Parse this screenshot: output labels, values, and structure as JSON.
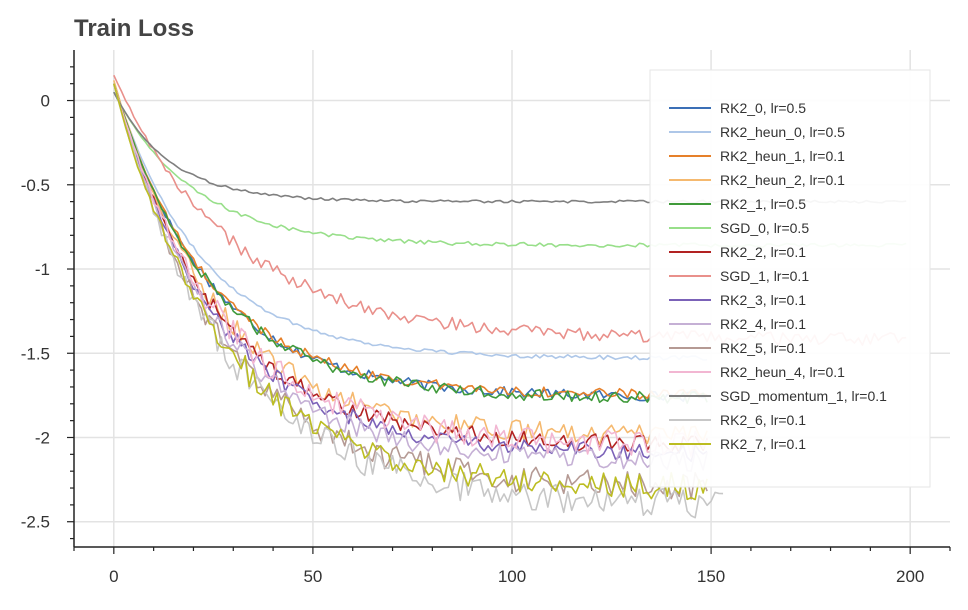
{
  "chart_data": {
    "type": "line",
    "title": "Train Loss",
    "xlabel": "",
    "ylabel": "",
    "xlim": [
      -10,
      210
    ],
    "ylim": [
      -2.65,
      0.3
    ],
    "x_ticks": [
      0,
      50,
      100,
      150,
      200
    ],
    "x_tick_labels": [
      "0",
      "50",
      "100",
      "150",
      "200"
    ],
    "y_ticks": [
      0,
      -0.5,
      -1,
      -1.5,
      -2,
      -2.5
    ],
    "y_tick_labels": [
      "0",
      "-0.5",
      "-1",
      "-1.5",
      "-2",
      "-2.5"
    ],
    "grid": true,
    "legend_position": "top-right",
    "series": [
      {
        "name": "RK2_0, lr=0.5",
        "color": "#3b6fb6",
        "n": 150,
        "start": 0.1,
        "end": -1.76,
        "tau": 24,
        "noise": 0.03
      },
      {
        "name": "RK2_heun_0, lr=0.5",
        "color": "#aec7e8",
        "n": 150,
        "start": 0.1,
        "end": -1.53,
        "tau": 22,
        "noise": 0.012
      },
      {
        "name": "RK2_heun_1, lr=0.1",
        "color": "#e6802a",
        "n": 150,
        "start": 0.1,
        "end": -1.75,
        "tau": 24,
        "noise": 0.03
      },
      {
        "name": "RK2_heun_2, lr=0.1",
        "color": "#f5b96f",
        "n": 150,
        "start": 0.12,
        "end": -2.0,
        "tau": 26,
        "noise": 0.06
      },
      {
        "name": "RK2_1, lr=0.5",
        "color": "#3f9a3a",
        "n": 150,
        "start": 0.1,
        "end": -1.77,
        "tau": 24,
        "noise": 0.035
      },
      {
        "name": "SGD_0, lr=0.5",
        "color": "#98df8a",
        "n": 200,
        "start": 0.05,
        "end": -0.86,
        "tau": 20,
        "noise": 0.012
      },
      {
        "name": "RK2_2, lr=0.1",
        "color": "#b22222",
        "n": 150,
        "start": 0.1,
        "end": -2.05,
        "tau": 26,
        "noise": 0.05
      },
      {
        "name": "SGD_1, lr=0.1",
        "color": "#e9908b",
        "n": 200,
        "start": 0.15,
        "end": -1.42,
        "tau": 30,
        "noise": 0.04
      },
      {
        "name": "RK2_3, lr=0.1",
        "color": "#7b62b8",
        "n": 150,
        "start": 0.1,
        "end": -2.1,
        "tau": 26,
        "noise": 0.05
      },
      {
        "name": "RK2_4, lr=0.1",
        "color": "#c5b0d5",
        "n": 150,
        "start": 0.1,
        "end": -2.15,
        "tau": 26,
        "noise": 0.06
      },
      {
        "name": "RK2_5, lr=0.1",
        "color": "#b59a94",
        "n": 150,
        "start": 0.1,
        "end": -2.3,
        "tau": 27,
        "noise": 0.08
      },
      {
        "name": "RK2_heun_4, lr=0.1",
        "color": "#f2b6d2",
        "n": 150,
        "start": 0.1,
        "end": -2.05,
        "tau": 26,
        "noise": 0.08
      },
      {
        "name": "SGD_momentum_1, lr=0.1",
        "color": "#7f7f7f",
        "n": 200,
        "start": 0.05,
        "end": -0.6,
        "tau": 14,
        "noise": 0.008
      },
      {
        "name": "RK2_6, lr=0.1",
        "color": "#c7c7c7",
        "n": 154,
        "start": 0.1,
        "end": -2.4,
        "tau": 28,
        "noise": 0.09
      },
      {
        "name": "RK2_7, lr=0.1",
        "color": "#bcbd22",
        "n": 150,
        "start": 0.1,
        "end": -2.3,
        "tau": 27,
        "noise": 0.08
      }
    ]
  }
}
